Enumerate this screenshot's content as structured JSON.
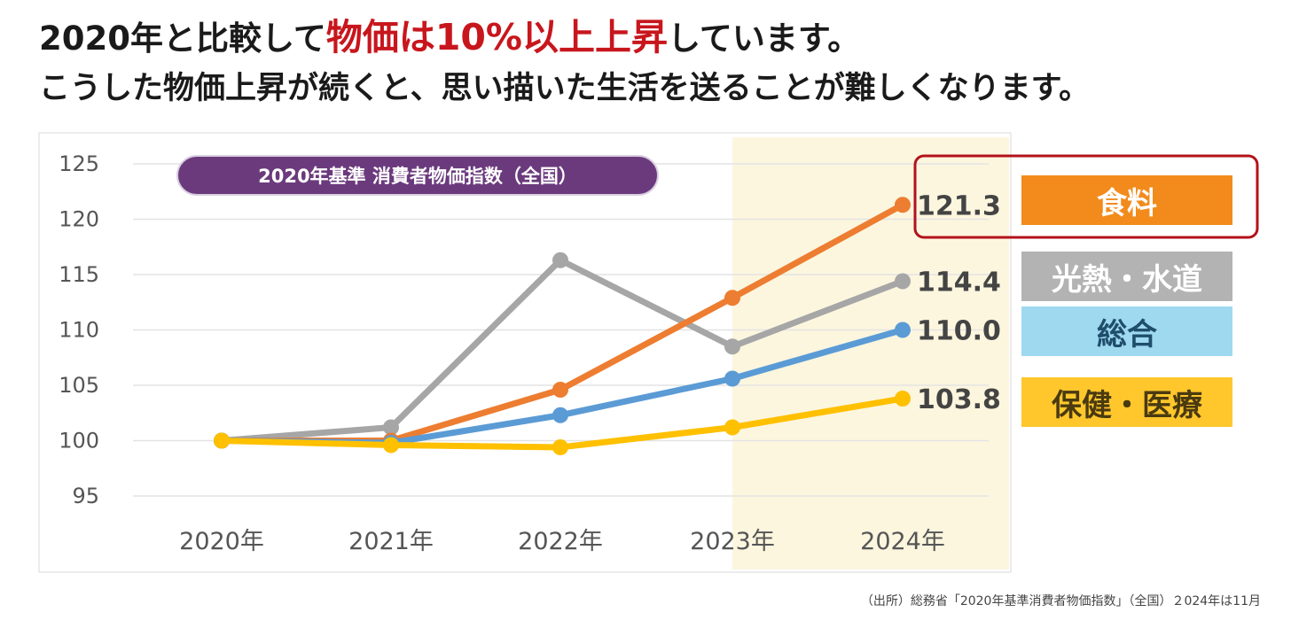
{
  "header": {
    "line1_prefix": "2020年と比較して",
    "line1_highlight": "物価は10%以上上昇",
    "line1_suffix": "しています。",
    "line2": "こうした物価上昇が続くと、思い描いた生活を送ることが難しくなります。"
  },
  "chart_data": {
    "type": "line",
    "title": "2020年基準 消費者物価指数（全国）",
    "categories": [
      "2020年",
      "2021年",
      "2022年",
      "2023年",
      "2024年"
    ],
    "ylim": [
      95,
      125
    ],
    "yticks": [
      95,
      100,
      105,
      110,
      115,
      120,
      125
    ],
    "grid": true,
    "highlight_category": "2024年",
    "series": [
      {
        "name": "光熱・水道",
        "color": "#a6a6a6",
        "values": [
          100.0,
          101.2,
          116.3,
          108.5,
          114.4
        ],
        "end_label": "114.4"
      },
      {
        "name": "食料",
        "color": "#ed7d31",
        "values": [
          100.0,
          100.0,
          104.6,
          112.9,
          121.3
        ],
        "end_label": "121.3"
      },
      {
        "name": "総合",
        "color": "#5b9bd5",
        "values": [
          100.0,
          99.8,
          102.3,
          105.6,
          110.0
        ],
        "end_label": "110.0"
      },
      {
        "name": "保健・医療",
        "color": "#ffc000",
        "values": [
          100.0,
          99.6,
          99.4,
          101.2,
          103.8
        ],
        "end_label": "103.8"
      }
    ]
  },
  "legend_colors": {
    "食料": "#f28b1c",
    "光熱・水道": "#b3b3b3",
    "総合": "#9fd9f0",
    "保健・医療": "#ffc72c"
  },
  "footnote": "（出所）総務省「2020年基準消費者物価指数」（全国）２024年は11月"
}
